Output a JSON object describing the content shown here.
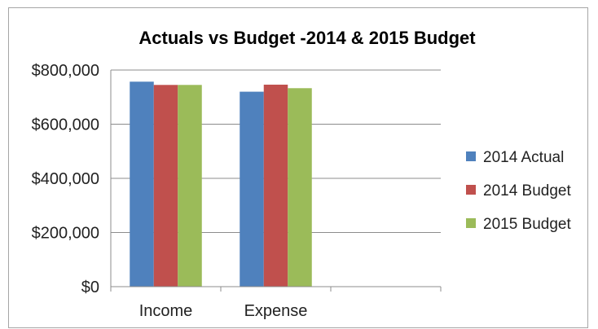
{
  "chart_data": {
    "type": "bar",
    "title": "Actuals vs Budget -2014 & 2015 Budget",
    "categories": [
      "Income",
      "Expense"
    ],
    "series": [
      {
        "name": "2014 Actual",
        "color": "#4f81bd",
        "values": [
          757000,
          720000
        ]
      },
      {
        "name": "2014 Budget",
        "color": "#c0504d",
        "values": [
          745000,
          746000
        ]
      },
      {
        "name": "2015 Budget",
        "color": "#9bbb59",
        "values": [
          745000,
          733000
        ]
      }
    ],
    "ylim": [
      0,
      800000
    ],
    "yticks": [
      0,
      200000,
      400000,
      600000,
      800000
    ],
    "ytick_labels": [
      "$0",
      "$200,000",
      "$400,000",
      "$600,000",
      "$800,000"
    ],
    "grid": true,
    "legend": "right"
  }
}
